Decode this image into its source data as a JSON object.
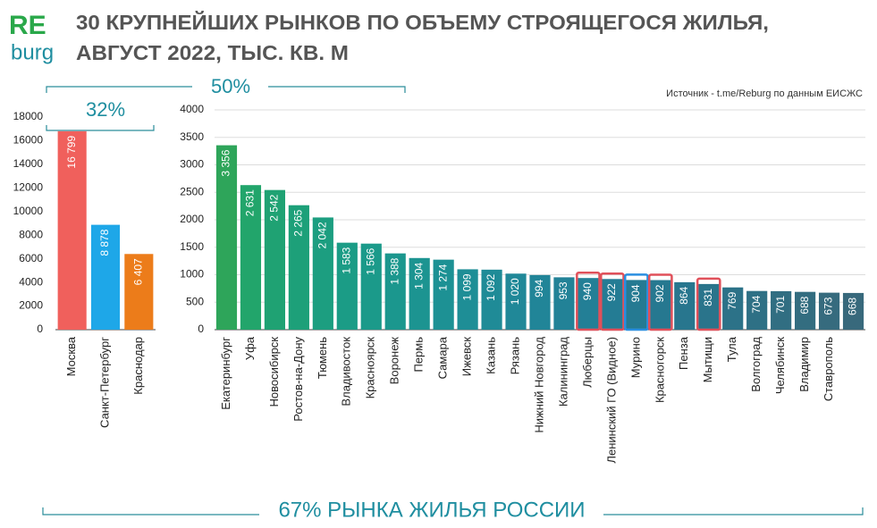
{
  "header": {
    "logo_main": "RE",
    "logo_sub": "burg",
    "title": [
      "30 КРУПНЕЙШИХ РЫНКОВ ПО ОБЪЕМУ СТРОЯЩЕГОСЯ ЖИЛЬЯ,",
      "АВГУСТ 2022, ТЫС. КВ. М"
    ],
    "source": "Источник - t.me/Reburg по данным ЕИСЖС",
    "footer": "67% РЫНКА ЖИЛЬЯ РОССИИ"
  },
  "chart_data": [
    {
      "type": "bar",
      "annotation": "32%",
      "categories": [
        "Москва",
        "Санкт-Петербург",
        "Краснодар"
      ],
      "values": [
        16799,
        8878,
        6407
      ],
      "value_labels": [
        "16 799",
        "8 878",
        "6 407"
      ],
      "colors": [
        "#f0605c",
        "#1ea7e8",
        "#ec7c1a"
      ],
      "ylim": [
        0,
        18000
      ],
      "yticks": [
        0,
        2000,
        4000,
        6000,
        8000,
        10000,
        12000,
        14000,
        16000,
        18000
      ],
      "grid": false
    },
    {
      "type": "bar",
      "annotation": "50%",
      "categories": [
        "Екатеринбург",
        "Уфа",
        "Новосибирск",
        "Ростов-на-Дону",
        "Тюмень",
        "Владивосток",
        "Красноярск",
        "Воронеж",
        "Пермь",
        "Самара",
        "Ижевск",
        "Казань",
        "Рязань",
        "Нижний Новгород",
        "Калининград",
        "Люберцы",
        "Ленинский ГО (Видное)",
        "Мурино",
        "Красногорск",
        "Пенза",
        "Мытищи",
        "Тула",
        "Волгоград",
        "Челябинск",
        "Владимир",
        "Ставрополь",
        null
      ],
      "values": [
        3356,
        2631,
        2542,
        2265,
        2042,
        1583,
        1566,
        1388,
        1304,
        1274,
        1099,
        1092,
        1020,
        994,
        953,
        940,
        922,
        904,
        902,
        864,
        831,
        769,
        704,
        701,
        688,
        673,
        668
      ],
      "value_labels": [
        "3 356",
        "2 631",
        "2 542",
        "2 265",
        "2 042",
        "1 583",
        "1 566",
        "1 388",
        "1 304",
        "1 274",
        "1 099",
        "1 092",
        "1 020",
        "994",
        "953",
        "940",
        "922",
        "904",
        "902",
        "864",
        "831",
        "769",
        "704",
        "701",
        "688",
        "673",
        "668"
      ],
      "colors": [
        "#2ea55a",
        "#22a56b",
        "#1fa273",
        "#1da079",
        "#1c9e80",
        "#1b9c86",
        "#1b9a8a",
        "#1b978e",
        "#1c9491",
        "#1d9194",
        "#1e8e96",
        "#1f8b97",
        "#208898",
        "#218598",
        "#228297",
        "#237f96",
        "#247c94",
        "#257a92",
        "#267890",
        "#28768e",
        "#2a748b",
        "#2c7288",
        "#2e7085",
        "#316e82",
        "#336d80",
        "#366b7e",
        "#38697c"
      ],
      "edge_colors": [
        null,
        null,
        null,
        null,
        null,
        null,
        null,
        null,
        null,
        null,
        null,
        null,
        null,
        null,
        null,
        "#e0505a",
        "#e0505a",
        "#2a8fe0",
        "#e0505a",
        null,
        "#e0505a",
        null,
        null,
        null,
        null,
        null,
        null
      ],
      "ylim": [
        0,
        4000
      ],
      "yticks": [
        0,
        500,
        1000,
        1500,
        2000,
        2500,
        3000,
        3500,
        4000
      ],
      "grid": true
    }
  ]
}
